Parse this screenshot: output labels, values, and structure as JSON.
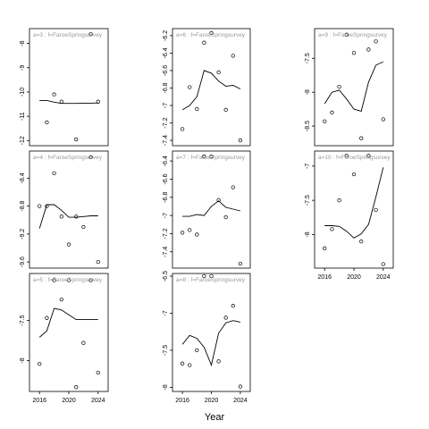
{
  "chart_data": {
    "type": "line",
    "x_axis_label": "Year",
    "x_ticks": [
      2016,
      2020,
      2024
    ],
    "panels": [
      {
        "label": "a=3 : f=FaroeSpringsurvey",
        "ylim": [
          -12.1,
          -7.5
        ],
        "y_ticks": [
          -8,
          -9,
          -10,
          -11,
          -12
        ],
        "points": [
          [
            2017,
            -11.25
          ],
          [
            2018,
            -10.1
          ],
          [
            2019,
            -10.4
          ],
          [
            2021,
            -11.95
          ],
          [
            2023,
            -7.62
          ],
          [
            2024,
            -10.4
          ]
        ],
        "trend": [
          [
            2016,
            -10.35
          ],
          [
            2017,
            -10.35
          ],
          [
            2018,
            -10.42
          ],
          [
            2019,
            -10.47
          ],
          [
            2020,
            -10.47
          ],
          [
            2021,
            -10.47
          ],
          [
            2022,
            -10.46
          ],
          [
            2023,
            -10.46
          ],
          [
            2024,
            -10.45
          ]
        ]
      },
      {
        "label": "a=4 : f=FaroeSpringsurvey",
        "ylim": [
          -9.65,
          -8.05
        ],
        "y_ticks": [
          -8.4,
          -8.8,
          -9.2,
          -9.6
        ],
        "points": [
          [
            2016,
            -8.8
          ],
          [
            2017,
            -8.8
          ],
          [
            2018,
            -8.33
          ],
          [
            2019,
            -8.95
          ],
          [
            2020,
            -9.35
          ],
          [
            2021,
            -8.95
          ],
          [
            2022,
            -9.1
          ],
          [
            2023,
            -8.1
          ],
          [
            2024,
            -9.6
          ]
        ],
        "trend": [
          [
            2016,
            -9.12
          ],
          [
            2017,
            -8.78
          ],
          [
            2018,
            -8.78
          ],
          [
            2019,
            -8.86
          ],
          [
            2020,
            -8.96
          ],
          [
            2021,
            -8.96
          ],
          [
            2022,
            -8.95
          ],
          [
            2023,
            -8.94
          ],
          [
            2024,
            -8.94
          ]
        ]
      },
      {
        "label": "a=5 : f=FaroeSpringsurvey",
        "ylim": [
          -8.35,
          -6.95
        ],
        "y_ticks": [
          -7.5,
          -8.0
        ],
        "points": [
          [
            2016,
            -8.04
          ],
          [
            2017,
            -7.47
          ],
          [
            2018,
            -7.0
          ],
          [
            2019,
            -7.24
          ],
          [
            2020,
            -7.0
          ],
          [
            2021,
            -8.33
          ],
          [
            2022,
            -7.78
          ],
          [
            2023,
            -7.0
          ],
          [
            2024,
            -8.15
          ]
        ],
        "trend": [
          [
            2016,
            -7.71
          ],
          [
            2017,
            -7.63
          ],
          [
            2018,
            -7.35
          ],
          [
            2019,
            -7.37
          ],
          [
            2020,
            -7.43
          ],
          [
            2021,
            -7.49
          ],
          [
            2022,
            -7.49
          ],
          [
            2023,
            -7.49
          ],
          [
            2024,
            -7.49
          ]
        ]
      },
      {
        "label": "a=6 : f=FaroeSpringsurvey",
        "ylim": [
          -7.43,
          -6.15
        ],
        "y_ticks": [
          -6.2,
          -6.4,
          -6.6,
          -6.8,
          -7.0,
          -7.2,
          -7.4
        ],
        "points": [
          [
            2016,
            -7.27
          ],
          [
            2017,
            -6.79
          ],
          [
            2018,
            -7.04
          ],
          [
            2019,
            -6.28
          ],
          [
            2020,
            -6.17
          ],
          [
            2021,
            -6.62
          ],
          [
            2022,
            -7.05
          ],
          [
            2023,
            -6.43
          ],
          [
            2024,
            -7.4
          ]
        ],
        "trend": [
          [
            2016,
            -7.05
          ],
          [
            2017,
            -7.0
          ],
          [
            2018,
            -6.9
          ],
          [
            2019,
            -6.6
          ],
          [
            2020,
            -6.63
          ],
          [
            2021,
            -6.72
          ],
          [
            2022,
            -6.78
          ],
          [
            2023,
            -6.77
          ],
          [
            2024,
            -6.81
          ]
        ]
      },
      {
        "label": "a=7 : f=FaroeSpringsurvey",
        "ylim": [
          -7.55,
          -6.32
        ],
        "y_ticks": [
          -6.4,
          -6.6,
          -6.8,
          -7.0,
          -7.2,
          -7.4
        ],
        "points": [
          [
            2016,
            -7.19
          ],
          [
            2017,
            -7.16
          ],
          [
            2018,
            -7.21
          ],
          [
            2019,
            -6.35
          ],
          [
            2020,
            -6.35
          ],
          [
            2021,
            -6.83
          ],
          [
            2022,
            -7.02
          ],
          [
            2023,
            -6.69
          ],
          [
            2024,
            -7.53
          ]
        ],
        "trend": [
          [
            2016,
            -7.01
          ],
          [
            2017,
            -7.01
          ],
          [
            2018,
            -6.99
          ],
          [
            2019,
            -7.0
          ],
          [
            2020,
            -6.9
          ],
          [
            2021,
            -6.84
          ],
          [
            2022,
            -6.91
          ],
          [
            2023,
            -6.93
          ],
          [
            2024,
            -6.95
          ]
        ]
      },
      {
        "label": "a=8 : f=FaroeSpringsurvey",
        "ylim": [
          -8.02,
          -6.5
        ],
        "y_ticks": [
          -6.5,
          -7.0,
          -7.5,
          -8.0
        ],
        "points": [
          [
            2016,
            -7.68
          ],
          [
            2017,
            -7.7
          ],
          [
            2018,
            -7.5
          ],
          [
            2019,
            -6.5
          ],
          [
            2020,
            -6.5
          ],
          [
            2021,
            -7.65
          ],
          [
            2022,
            -7.06
          ],
          [
            2023,
            -6.9
          ],
          [
            2024,
            -7.99
          ]
        ],
        "trend": [
          [
            2016,
            -7.42
          ],
          [
            2017,
            -7.3
          ],
          [
            2018,
            -7.34
          ],
          [
            2019,
            -7.46
          ],
          [
            2020,
            -7.7
          ],
          [
            2021,
            -7.27
          ],
          [
            2022,
            -7.13
          ],
          [
            2023,
            -7.1
          ],
          [
            2024,
            -7.12
          ]
        ]
      },
      {
        "label": "a=9 : f=FaroeSpringsurvey",
        "ylim": [
          -8.75,
          -7.1
        ],
        "y_ticks": [
          -7.5,
          -8.0,
          -8.5
        ],
        "points": [
          [
            2016,
            -8.43
          ],
          [
            2017,
            -8.3
          ],
          [
            2018,
            -7.92
          ],
          [
            2019,
            -7.15
          ],
          [
            2020,
            -7.42
          ],
          [
            2021,
            -8.68
          ],
          [
            2022,
            -7.37
          ],
          [
            2023,
            -7.25
          ],
          [
            2024,
            -8.4
          ]
        ],
        "trend": [
          [
            2016,
            -8.17
          ],
          [
            2017,
            -8.0
          ],
          [
            2018,
            -7.97
          ],
          [
            2019,
            -8.1
          ],
          [
            2020,
            -8.25
          ],
          [
            2021,
            -8.28
          ],
          [
            2022,
            -7.85
          ],
          [
            2023,
            -7.6
          ],
          [
            2024,
            -7.55
          ]
        ]
      },
      {
        "label": "a=10 : f=FaroeSpringsurvey",
        "ylim": [
          -8.45,
          -6.82
        ],
        "y_ticks": [
          -7.0,
          -7.5,
          -8.0
        ],
        "points": [
          [
            2016,
            -8.2
          ],
          [
            2017,
            -7.92
          ],
          [
            2018,
            -7.5
          ],
          [
            2019,
            -6.85
          ],
          [
            2020,
            -7.12
          ],
          [
            2021,
            -8.1
          ],
          [
            2022,
            -6.85
          ],
          [
            2023,
            -7.64
          ],
          [
            2024,
            -8.43
          ]
        ],
        "trend": [
          [
            2016,
            -7.87
          ],
          [
            2017,
            -7.87
          ],
          [
            2018,
            -7.88
          ],
          [
            2019,
            -7.95
          ],
          [
            2020,
            -8.05
          ],
          [
            2021,
            -7.99
          ],
          [
            2022,
            -7.85
          ],
          [
            2023,
            -7.45
          ],
          [
            2024,
            -7.02
          ]
        ]
      }
    ]
  }
}
